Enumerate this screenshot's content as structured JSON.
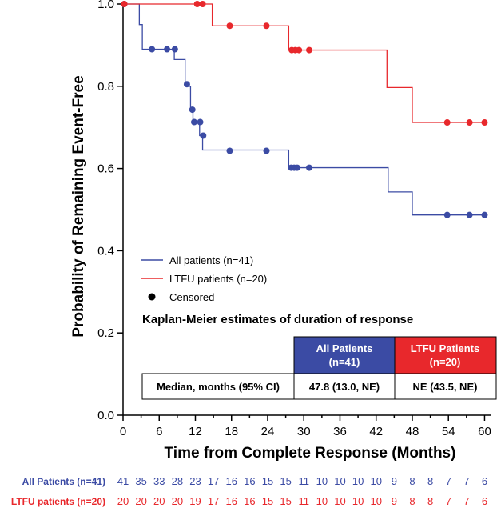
{
  "chart_data": {
    "type": "line",
    "subtype": "kaplan-meier",
    "xlabel": "Time from Complete Response (Months)",
    "ylabel": "Probability of Remaining Event-Free",
    "xlim": [
      0,
      61
    ],
    "ylim": [
      0,
      1.0
    ],
    "x_ticks": [
      0,
      6,
      12,
      18,
      24,
      30,
      36,
      42,
      48,
      54,
      60
    ],
    "y_ticks": [
      0.0,
      0.2,
      0.4,
      0.6,
      0.8,
      1.0
    ],
    "y_tick_labels": [
      "0.0",
      "0.2",
      "0.4",
      "0.6",
      "0.8",
      "1.0"
    ],
    "colors": {
      "all": "#3b4ba4",
      "ltfu": "#e8282c"
    },
    "series": [
      {
        "key": "all",
        "name": "All patients (n=41)",
        "steps": [
          [
            0,
            1.0
          ],
          [
            2.7,
            0.95
          ],
          [
            3.2,
            0.89
          ],
          [
            8.5,
            0.865
          ],
          [
            10.3,
            0.8
          ],
          [
            11.2,
            0.74
          ],
          [
            11.6,
            0.715
          ],
          [
            12.7,
            0.68
          ],
          [
            13.2,
            0.645
          ],
          [
            27.5,
            0.602
          ],
          [
            44,
            0.543
          ],
          [
            48,
            0.487
          ],
          [
            60,
            0.487
          ]
        ],
        "censored": [
          [
            0.2,
            1.0
          ],
          [
            4.8,
            0.89
          ],
          [
            7.3,
            0.89
          ],
          [
            8.6,
            0.89
          ],
          [
            10.6,
            0.805
          ],
          [
            11.5,
            0.743
          ],
          [
            11.8,
            0.713
          ],
          [
            12.8,
            0.713
          ],
          [
            13.3,
            0.68
          ],
          [
            17.7,
            0.643
          ],
          [
            23.8,
            0.643
          ],
          [
            27.9,
            0.602
          ],
          [
            28.4,
            0.602
          ],
          [
            28.9,
            0.602
          ],
          [
            30.9,
            0.602
          ],
          [
            53.8,
            0.487
          ],
          [
            57.5,
            0.487
          ],
          [
            60,
            0.487
          ]
        ]
      },
      {
        "key": "ltfu",
        "name": "LTFU patients (n=20)",
        "steps": [
          [
            0,
            1.0
          ],
          [
            14.8,
            0.947
          ],
          [
            27.5,
            0.888
          ],
          [
            43.8,
            0.797
          ],
          [
            48,
            0.712
          ],
          [
            60,
            0.712
          ]
        ],
        "censored": [
          [
            0.2,
            1.0
          ],
          [
            12.3,
            1.0
          ],
          [
            13.2,
            1.0
          ],
          [
            17.7,
            0.947
          ],
          [
            23.8,
            0.947
          ],
          [
            28.0,
            0.888
          ],
          [
            28.6,
            0.888
          ],
          [
            29.2,
            0.888
          ],
          [
            30.9,
            0.888
          ],
          [
            53.8,
            0.712
          ],
          [
            57.5,
            0.712
          ],
          [
            60,
            0.712
          ]
        ]
      }
    ],
    "legend": {
      "all": "All patients (n=41)",
      "ltfu": "LTFU patients (n=20)",
      "censored": "Censored"
    },
    "km_table": {
      "title": "Kaplan-Meier estimates of duration of response",
      "header_all": [
        "All Patients",
        "(n=41)"
      ],
      "header_ltfu": [
        "LTFU Patients",
        "(n=20)"
      ],
      "row_label": "Median, months (95% CI)",
      "value_all": "47.8 (13.0, NE)",
      "value_ltfu": "NE (43.5, NE)"
    },
    "at_risk": {
      "all_label": "All Patients (n=41)",
      "ltfu_label": "LTFU patients (n=20)",
      "all": [
        41,
        35,
        33,
        28,
        23,
        17,
        16,
        16,
        15,
        15,
        11,
        10,
        10,
        10,
        10,
        9,
        8,
        8,
        7,
        7,
        6
      ],
      "ltfu": [
        20,
        20,
        20,
        20,
        19,
        17,
        16,
        16,
        15,
        15,
        11,
        10,
        10,
        10,
        10,
        9,
        8,
        8,
        7,
        7,
        6
      ]
    }
  }
}
